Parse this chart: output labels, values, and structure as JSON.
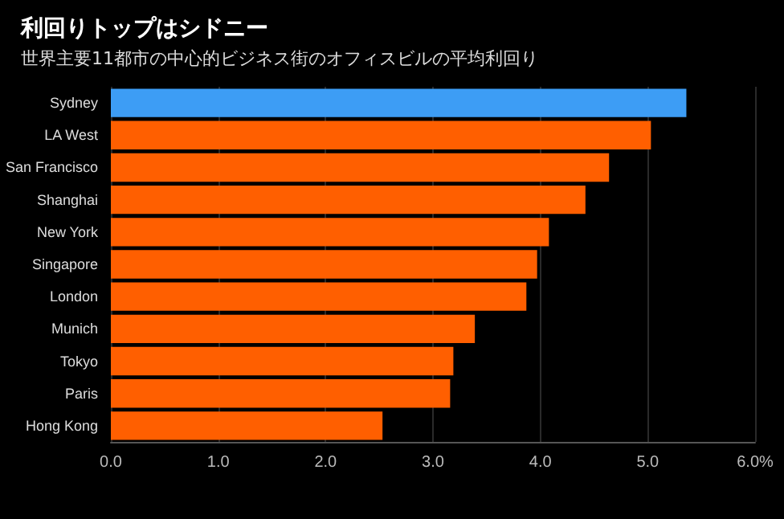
{
  "chart_data": {
    "type": "bar",
    "orientation": "horizontal",
    "title": "利回りトップはシドニー",
    "subtitle": "世界主要11都市の中心的ビジネス街のオフィスビルの平均利回り",
    "categories": [
      "Sydney",
      "LA West",
      "San Francisco",
      "Shanghai",
      "New York",
      "Singapore",
      "London",
      "Munich",
      "Tokyo",
      "Paris",
      "Hong Kong"
    ],
    "values": [
      5.36,
      5.03,
      4.64,
      4.42,
      4.08,
      3.97,
      3.87,
      3.39,
      3.19,
      3.16,
      2.53
    ],
    "colors": [
      "#3d9df5",
      "#ff5f00",
      "#ff5f00",
      "#ff5f00",
      "#ff5f00",
      "#ff5f00",
      "#ff5f00",
      "#ff5f00",
      "#ff5f00",
      "#ff5f00",
      "#ff5f00"
    ],
    "xlim": [
      0,
      6
    ],
    "xticks": [
      {
        "value": 0,
        "label": "0.0"
      },
      {
        "value": 1,
        "label": "1.0"
      },
      {
        "value": 2,
        "label": "2.0"
      },
      {
        "value": 3,
        "label": "3.0"
      },
      {
        "value": 4,
        "label": "4.0"
      },
      {
        "value": 5,
        "label": "5.0"
      },
      {
        "value": 6,
        "label": "6.0%"
      }
    ],
    "grid": "x"
  }
}
